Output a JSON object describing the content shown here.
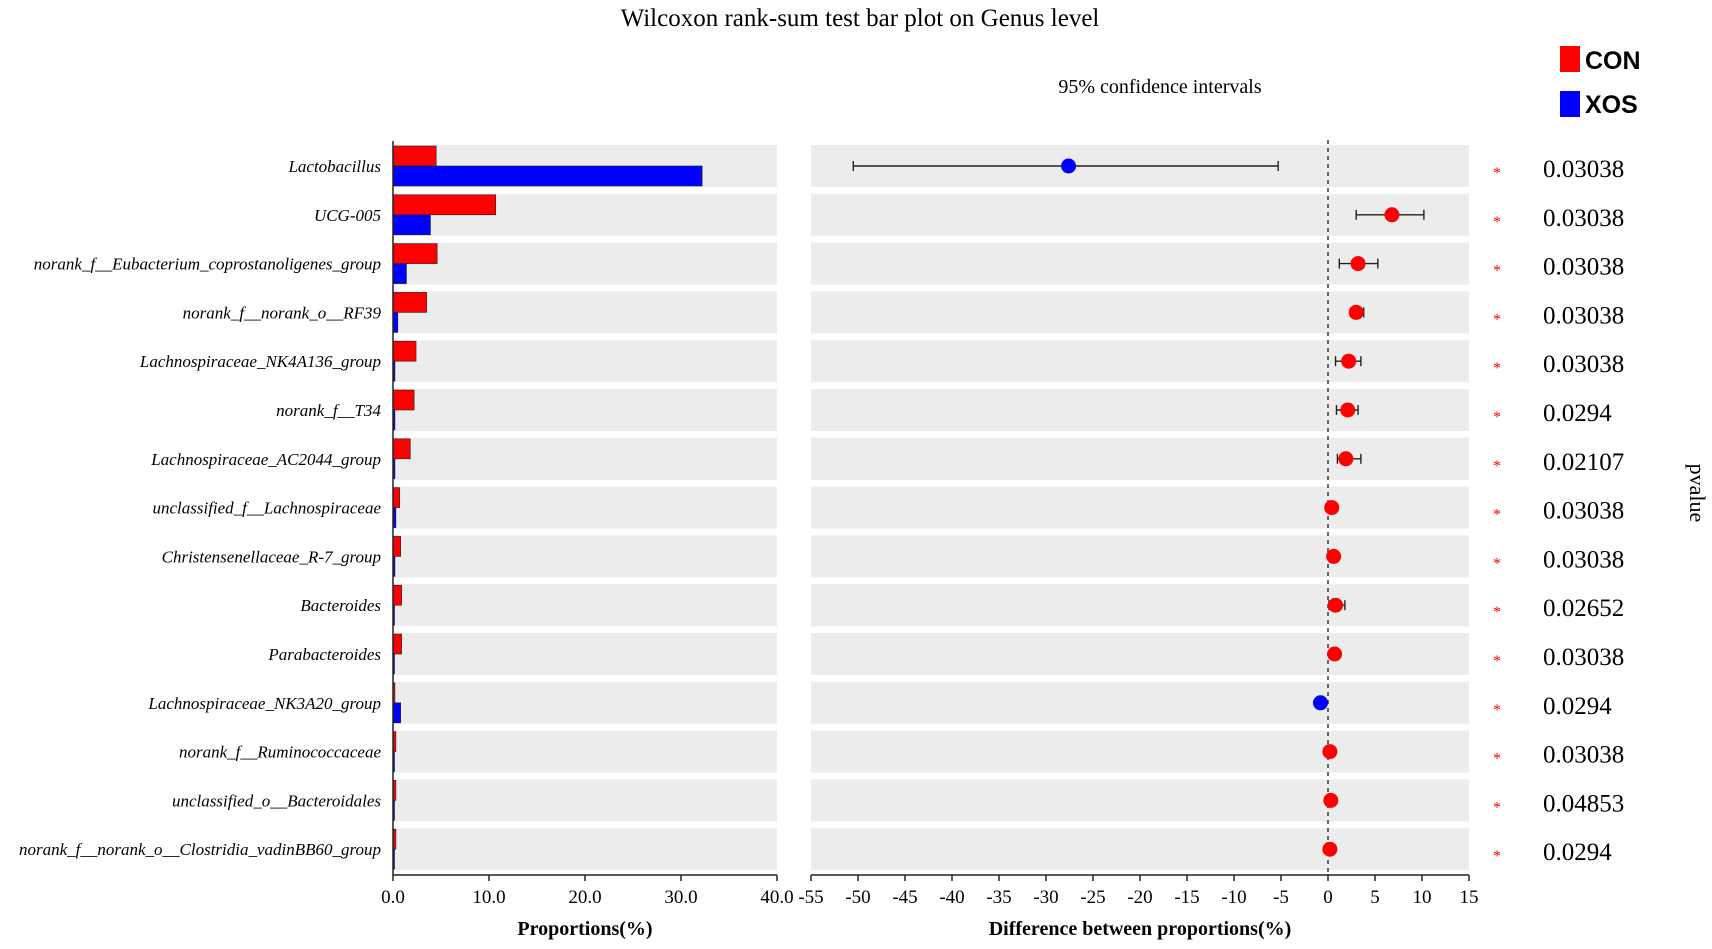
{
  "chart_data": [
    {
      "type": "bar",
      "title": "Wilcoxon rank-sum test bar plot on Genus level",
      "orientation": "horizontal",
      "categories": [
        "Lactobacillus",
        "UCG-005",
        "norank_f__Eubacterium_coprostanoligenes_group",
        "norank_f__norank_o__RF39",
        "Lachnospiraceae_NK4A136_group",
        "norank_f__T34",
        "Lachnospiraceae_AC2044_group",
        "unclassified_f__Lachnospiraceae",
        "Christensenellaceae_R-7_group",
        "Bacteroides",
        "Parabacteroides",
        "Lachnospiraceae_NK3A20_group",
        "norank_f__Ruminococcaceae",
        "unclassified_o__Bacteroidales",
        "norank_f__norank_o__Clostridia_vadinBB60_group"
      ],
      "series": [
        {
          "name": "CON",
          "color": "#ff0000",
          "values": [
            4.5,
            10.7,
            4.6,
            3.5,
            2.4,
            2.2,
            1.8,
            0.7,
            0.8,
            0.9,
            0.9,
            0.2,
            0.3,
            0.3,
            0.3
          ]
        },
        {
          "name": "XOS",
          "color": "#0000ff",
          "values": [
            32.2,
            3.9,
            1.4,
            0.5,
            0.2,
            0.2,
            0.2,
            0.3,
            0.2,
            0.1,
            0.1,
            0.8,
            0.1,
            0.1,
            0.1
          ]
        }
      ],
      "xlabel": "Proportions(%)",
      "xlim": [
        0,
        40
      ],
      "xticks": [
        "0.0",
        "10.0",
        "20.0",
        "30.0",
        "40.0"
      ],
      "legend": {
        "position": "top-right",
        "entries": [
          {
            "name": "CON",
            "color": "#ff0000"
          },
          {
            "name": "XOS",
            "color": "#0000ff"
          }
        ]
      }
    },
    {
      "type": "scatter",
      "subtitle": "95% confidence intervals",
      "xlabel": "Difference between proportions(%)",
      "xlim": [
        -55,
        15
      ],
      "xticks": [
        "-55",
        "-50",
        "-45",
        "-40",
        "-35",
        "-30",
        "-25",
        "-20",
        "-15",
        "-10",
        "-5",
        "0",
        "5",
        "10",
        "15"
      ],
      "reference_line": 0,
      "points": [
        {
          "y": "Lactobacillus",
          "x": -27.6,
          "ci": [
            -50.5,
            -5.3
          ],
          "group": "XOS",
          "color": "#0000ff"
        },
        {
          "y": "UCG-005",
          "x": 6.8,
          "ci": [
            3.0,
            10.2
          ],
          "group": "CON",
          "color": "#ff0000"
        },
        {
          "y": "norank_f__Eubacterium_coprostanoligenes_group",
          "x": 3.2,
          "ci": [
            1.2,
            5.3
          ],
          "group": "CON",
          "color": "#ff0000"
        },
        {
          "y": "norank_f__norank_o__RF39",
          "x": 3.0,
          "ci": [
            2.4,
            3.8
          ],
          "group": "CON",
          "color": "#ff0000"
        },
        {
          "y": "Lachnospiraceae_NK4A136_group",
          "x": 2.2,
          "ci": [
            0.8,
            3.5
          ],
          "group": "CON",
          "color": "#ff0000"
        },
        {
          "y": "norank_f__T34",
          "x": 2.1,
          "ci": [
            0.9,
            3.2
          ],
          "group": "CON",
          "color": "#ff0000"
        },
        {
          "y": "Lachnospiraceae_AC2044_group",
          "x": 1.9,
          "ci": [
            1.0,
            3.5
          ],
          "group": "CON",
          "color": "#ff0000"
        },
        {
          "y": "unclassified_f__Lachnospiraceae",
          "x": 0.4,
          "ci": [
            0.2,
            0.6
          ],
          "group": "CON",
          "color": "#ff0000"
        },
        {
          "y": "Christensenellaceae_R-7_group",
          "x": 0.6,
          "ci": [
            0.3,
            0.9
          ],
          "group": "CON",
          "color": "#ff0000"
        },
        {
          "y": "Bacteroides",
          "x": 0.8,
          "ci": [
            0.1,
            1.8
          ],
          "group": "CON",
          "color": "#ff0000"
        },
        {
          "y": "Parabacteroides",
          "x": 0.7,
          "ci": [
            0.4,
            1.0
          ],
          "group": "CON",
          "color": "#ff0000"
        },
        {
          "y": "Lachnospiraceae_NK3A20_group",
          "x": -0.8,
          "ci": [
            -1.2,
            -0.5
          ],
          "group": "XOS",
          "color": "#0000ff"
        },
        {
          "y": "norank_f__Ruminococcaceae",
          "x": 0.2,
          "ci": [
            0.1,
            0.3
          ],
          "group": "CON",
          "color": "#ff0000"
        },
        {
          "y": "unclassified_o__Bacteroidales",
          "x": 0.3,
          "ci": [
            0.1,
            0.4
          ],
          "group": "CON",
          "color": "#ff0000"
        },
        {
          "y": "norank_f__norank_o__Clostridia_vadinBB60_group",
          "x": 0.2,
          "ci": [
            0.1,
            0.3
          ],
          "group": "CON",
          "color": "#ff0000"
        }
      ]
    },
    {
      "type": "table",
      "ylabel": "pvalue",
      "marker": "*",
      "marker_color": "#ff0000",
      "values": [
        "0.03038",
        "0.03038",
        "0.03038",
        "0.03038",
        "0.03038",
        "0.0294",
        "0.02107",
        "0.03038",
        "0.03038",
        "0.02652",
        "0.03038",
        "0.0294",
        "0.03038",
        "0.04853",
        "0.0294"
      ]
    }
  ]
}
